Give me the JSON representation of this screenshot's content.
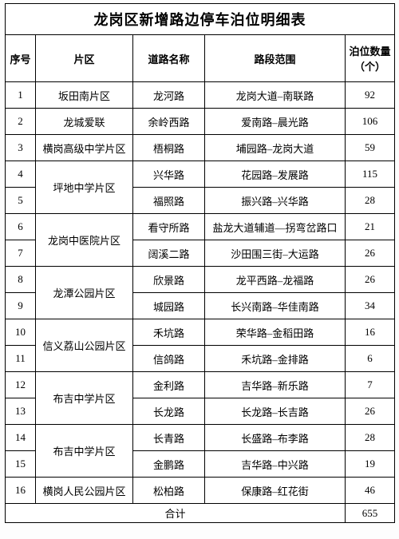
{
  "title": "龙岗区新增路边停车泊位明细表",
  "columns": {
    "seq": "序号",
    "area": "片区",
    "road": "道路名称",
    "range": "路段范围",
    "count": "泊位数量（个）"
  },
  "rows": [
    {
      "seq": 1,
      "area": "坂田南片区",
      "road": "龙河路",
      "range": "龙岗大道–南联路",
      "count": 92
    },
    {
      "seq": 2,
      "area": "龙城爱联",
      "road": "余岭西路",
      "range": "爱南路–晨光路",
      "count": 106
    },
    {
      "seq": 3,
      "area": "横岗高级中学片区",
      "road": "梧桐路",
      "range": "埔园路–龙岗大道",
      "count": 59
    },
    {
      "seq": 4,
      "area": "坪地中学片区",
      "road": "兴华路",
      "range": "花园路–发展路",
      "count": 115
    },
    {
      "seq": 5,
      "area": "坪地中学片区",
      "road": "福照路",
      "range": "振兴路–兴华路",
      "count": 28
    },
    {
      "seq": 6,
      "area": "龙岗中医院片区",
      "road": "看守所路",
      "range": "盐龙大道辅道—拐弯岔路口",
      "count": 21
    },
    {
      "seq": 7,
      "area": "龙岗中医院片区",
      "road": "阔溪二路",
      "range": "沙田围三街–大运路",
      "count": 26
    },
    {
      "seq": 8,
      "area": "龙潭公园片区",
      "road": "欣景路",
      "range": "龙平西路–龙福路",
      "count": 26
    },
    {
      "seq": 9,
      "area": "龙潭公园片区",
      "road": "城园路",
      "range": "长兴南路–华佳南路",
      "count": 34
    },
    {
      "seq": 10,
      "area": "信义荔山公园片区",
      "road": "禾坑路",
      "range": "荣华路–金稻田路",
      "count": 16
    },
    {
      "seq": 11,
      "area": "信义荔山公园片区",
      "road": "信鸽路",
      "range": "禾坑路–金排路",
      "count": 6
    },
    {
      "seq": 12,
      "area": "布吉中学片区",
      "road": "金利路",
      "range": "吉华路–新乐路",
      "count": 7
    },
    {
      "seq": 13,
      "area": "布吉中学片区",
      "road": "长龙路",
      "range": "长龙路–长吉路",
      "count": 26
    },
    {
      "seq": 14,
      "area": "布吉中学片区",
      "road": "长青路",
      "range": "长盛路–布李路",
      "count": 28
    },
    {
      "seq": 15,
      "area": "布吉中学片区",
      "road": "金鹏路",
      "range": "吉华路–中兴路",
      "count": 19
    },
    {
      "seq": 16,
      "area": "横岗人民公园片区",
      "road": "松柏路",
      "range": "保康路–红花街",
      "count": 46
    }
  ],
  "area_groups": [
    {
      "start": 0,
      "span": 1,
      "label": "坂田南片区"
    },
    {
      "start": 1,
      "span": 1,
      "label": "龙城爱联"
    },
    {
      "start": 2,
      "span": 1,
      "label": "横岗高级中学片区"
    },
    {
      "start": 3,
      "span": 2,
      "label": "坪地中学片区"
    },
    {
      "start": 5,
      "span": 2,
      "label": "龙岗中医院片区"
    },
    {
      "start": 7,
      "span": 2,
      "label": "龙潭公园片区"
    },
    {
      "start": 9,
      "span": 2,
      "label": "信义荔山公园片区"
    },
    {
      "start": 11,
      "span": 2,
      "label": "布吉中学片区"
    },
    {
      "start": 13,
      "span": 2,
      "label": "布吉中学片区"
    },
    {
      "start": 15,
      "span": 1,
      "label": "横岗人民公园片区"
    }
  ],
  "total": {
    "label": "合计",
    "value": 655
  }
}
